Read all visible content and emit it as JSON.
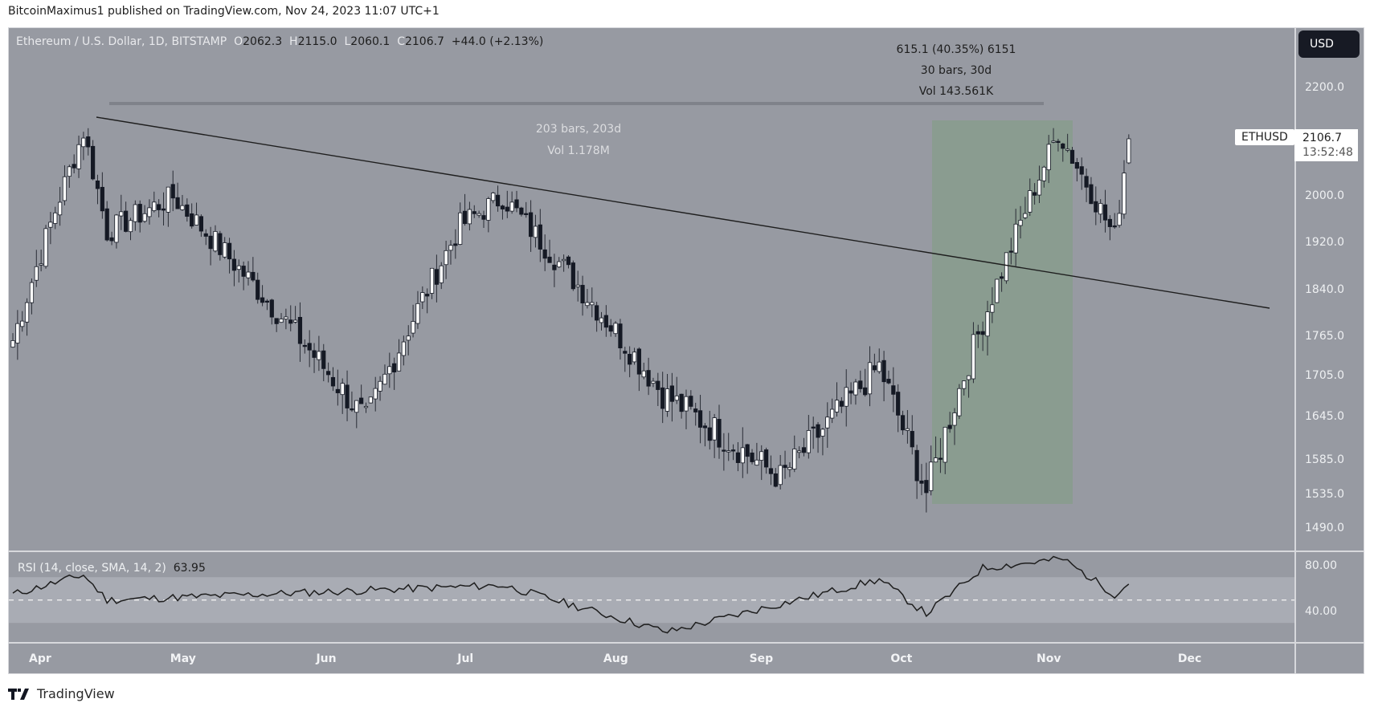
{
  "publisher_line": "BitcoinMaximus1 published on TradingView.com, Nov 24, 2023 11:07 UTC+1",
  "legend": {
    "symbol_desc": "Ethereum / U.S. Dollar, 1D, BITSTAMP",
    "o_label": "O",
    "o": "2062.3",
    "h_label": "H",
    "h": "2115.0",
    "l_label": "L",
    "l": "2060.1",
    "c_label": "C",
    "c": "2106.7",
    "change": "+44.0 (+2.13%)"
  },
  "currency_button": "USD",
  "ticker_label": "ETHUSD",
  "last_price": "2106.7",
  "countdown": "13:52:48",
  "measure_green": {
    "line1": "615.1 (40.35%) 6151",
    "line2": "30 bars, 30d",
    "line3": "Vol 143.561K"
  },
  "measure_range": {
    "line1": "203 bars, 203d",
    "line2": "Vol 1.178M"
  },
  "rsi": {
    "label": "RSI (14, close, SMA, 14, 2)",
    "value": "63.95",
    "axis": [
      "80.00",
      "40.00"
    ]
  },
  "footer_brand": "TradingView",
  "colors": {
    "background": "#979aa2",
    "bull_candle": "#ffffff",
    "bear_candle": "#151924",
    "measure_box": "#8a9c90",
    "rsi_band": "#a9acb4",
    "trendline": "#1e1e1e"
  },
  "chart_data": [
    {
      "type": "candlestick",
      "title": "Ethereum / U.S. Dollar, 1D, BITSTAMP",
      "xlabel": "",
      "ylabel": "USD",
      "x_ticks": [
        "Apr",
        "May",
        "Jun",
        "Jul",
        "Aug",
        "Sep",
        "Oct",
        "Nov",
        "Dec"
      ],
      "y_ticks": [
        "2200.0",
        "2000.0",
        "1920.0",
        "1840.0",
        "1765.0",
        "1705.0",
        "1645.0",
        "1585.0",
        "1535.0",
        "1490.0"
      ],
      "ylim": [
        1450,
        2260
      ],
      "grid": false,
      "key_points": [
        {
          "date": "Apr 1",
          "close": 1760
        },
        {
          "date": "Apr 16",
          "close": 2120,
          "note": "local high ~2140"
        },
        {
          "date": "Apr 21",
          "close": 1940
        },
        {
          "date": "May 5",
          "close": 2000
        },
        {
          "date": "Jun 15",
          "close": 1640
        },
        {
          "date": "Jul 5",
          "close": 1950
        },
        {
          "date": "Jul 14",
          "close": 2000,
          "note": "high ~2030 touching trendline"
        },
        {
          "date": "Aug 17",
          "close": 1680,
          "note": "wick low ~1550"
        },
        {
          "date": "Sep 11",
          "close": 1560
        },
        {
          "date": "Oct 2",
          "close": 1720,
          "note": "high ~1750"
        },
        {
          "date": "Oct 12",
          "close": 1540,
          "note": "low ~1520"
        },
        {
          "date": "Oct 24",
          "close": 1790
        },
        {
          "date": "Nov 9",
          "close": 2120,
          "note": "high ~2140"
        },
        {
          "date": "Nov 21",
          "close": 1930
        },
        {
          "date": "Nov 24",
          "close": 2106.7
        }
      ],
      "last": {
        "open": 2062.3,
        "high": 2115.0,
        "low": 2060.1,
        "close": 2106.7,
        "change": 44.0,
        "change_pct": 2.13
      },
      "annotations": [
        "Descending resistance trendline from Apr high (~2140) to ~1815 at Dec",
        "Date range measure: 203 bars, 203d, Vol 1.178M",
        "Green price range: 615.1 (40.35%), 30 bars, 30d, Vol 143.561K"
      ]
    },
    {
      "type": "line",
      "title": "RSI (14, close, SMA, 14, 2)",
      "y_ticks": [
        "80.00",
        "40.00"
      ],
      "band": [
        30,
        70
      ],
      "midline": 50,
      "last_value": 63.95,
      "key_points": [
        {
          "date": "Apr 1",
          "value": 55
        },
        {
          "date": "Apr 16",
          "value": 72
        },
        {
          "date": "Apr 21",
          "value": 50
        },
        {
          "date": "Jul 14",
          "value": 63
        },
        {
          "date": "Aug 18",
          "value": 22
        },
        {
          "date": "Oct 2",
          "value": 68
        },
        {
          "date": "Oct 12",
          "value": 38
        },
        {
          "date": "Oct 24",
          "value": 78
        },
        {
          "date": "Nov 10",
          "value": 86
        },
        {
          "date": "Nov 21",
          "value": 55
        },
        {
          "date": "Nov 24",
          "value": 63.95
        }
      ]
    }
  ]
}
